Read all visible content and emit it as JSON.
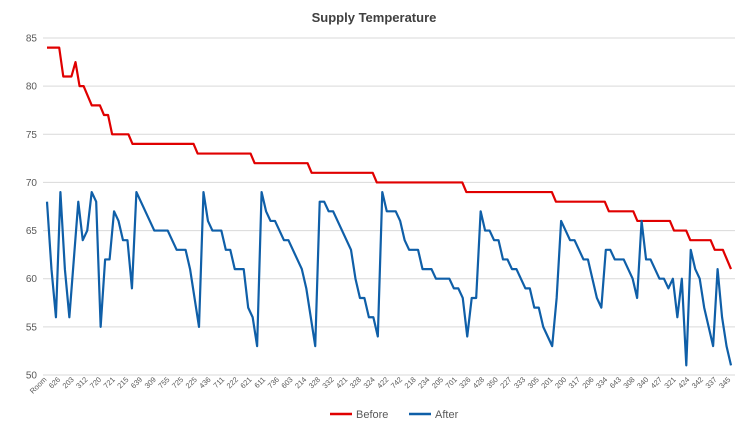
{
  "chart_data": {
    "type": "line",
    "title": "Supply Temperature",
    "xlabel": "",
    "ylabel": "",
    "ylim": [
      50,
      85
    ],
    "yticks": [
      50,
      55,
      60,
      65,
      70,
      75,
      80,
      85
    ],
    "grid": true,
    "legend_position": "bottom",
    "x_tick_labels": [
      "Room",
      "626",
      "203",
      "312",
      "720",
      "721",
      "215",
      "639",
      "309",
      "755",
      "725",
      "225",
      "436",
      "711",
      "222",
      "621",
      "611",
      "736",
      "603",
      "214",
      "328",
      "332",
      "421",
      "328",
      "324",
      "422",
      "742",
      "218",
      "234",
      "205",
      "701",
      "326",
      "428",
      "350",
      "227",
      "333",
      "305",
      "201",
      "200",
      "317",
      "206",
      "334",
      "643",
      "308",
      "340",
      "427",
      "321",
      "424",
      "342",
      "337",
      "345"
    ],
    "series": [
      {
        "name": "Before",
        "color": "#e00000",
        "values": [
          84,
          84,
          84,
          84,
          81,
          81,
          81,
          82.5,
          80,
          80,
          79,
          78,
          78,
          78,
          77,
          77,
          75,
          75,
          75,
          75,
          75,
          74,
          74,
          74,
          74,
          74,
          74,
          74,
          74,
          74,
          74,
          74,
          74,
          74,
          74,
          74,
          74,
          73,
          73,
          73,
          73,
          73,
          73,
          73,
          73,
          73,
          73,
          73,
          73,
          73,
          73,
          72,
          72,
          72,
          72,
          72,
          72,
          72,
          72,
          72,
          72,
          72,
          72,
          72,
          72,
          71,
          71,
          71,
          71,
          71,
          71,
          71,
          71,
          71,
          71,
          71,
          71,
          71,
          71,
          71,
          71,
          70,
          70,
          70,
          70,
          70,
          70,
          70,
          70,
          70,
          70,
          70,
          70,
          70,
          70,
          70,
          70,
          70,
          70,
          70,
          70,
          70,
          70,
          69,
          69,
          69,
          69,
          69,
          69,
          69,
          69,
          69,
          69,
          69,
          69,
          69,
          69,
          69,
          69,
          69,
          69,
          69,
          69,
          69,
          69,
          68,
          68,
          68,
          68,
          68,
          68,
          68,
          68,
          68,
          68,
          68,
          68,
          68,
          67,
          67,
          67,
          67,
          67,
          67,
          67,
          66,
          66,
          66,
          66,
          66,
          66,
          66,
          66,
          66,
          65,
          65,
          65,
          65,
          64,
          64,
          64,
          64,
          64,
          64,
          63,
          63,
          63,
          62,
          61
        ]
      },
      {
        "name": "After",
        "color": "#0f5fa8",
        "values": [
          68,
          61,
          56,
          69,
          61,
          56,
          62,
          68,
          64,
          65,
          69,
          68,
          55,
          62,
          62,
          67,
          66,
          64,
          64,
          59,
          69,
          68,
          67,
          66,
          65,
          65,
          65,
          65,
          64,
          63,
          63,
          63,
          61,
          58,
          55,
          69,
          66,
          65,
          65,
          65,
          63,
          63,
          61,
          61,
          61,
          57,
          56,
          53,
          69,
          67,
          66,
          66,
          65,
          64,
          64,
          63,
          62,
          61,
          59,
          56,
          53,
          68,
          68,
          67,
          67,
          66,
          65,
          64,
          63,
          60,
          58,
          58,
          56,
          56,
          54,
          69,
          67,
          67,
          67,
          66,
          64,
          63,
          63,
          63,
          61,
          61,
          61,
          60,
          60,
          60,
          60,
          59,
          59,
          58,
          54,
          58,
          58,
          67,
          65,
          65,
          64,
          64,
          62,
          62,
          61,
          61,
          60,
          59,
          59,
          57,
          57,
          55,
          54,
          53,
          58,
          66,
          65,
          64,
          64,
          63,
          62,
          62,
          60,
          58,
          57,
          63,
          63,
          62,
          62,
          62,
          61,
          60,
          58,
          66,
          62,
          62,
          61,
          60,
          60,
          59,
          60,
          56,
          60,
          51,
          63,
          61,
          60,
          57,
          55,
          53,
          61,
          56,
          53,
          51
        ]
      }
    ]
  }
}
